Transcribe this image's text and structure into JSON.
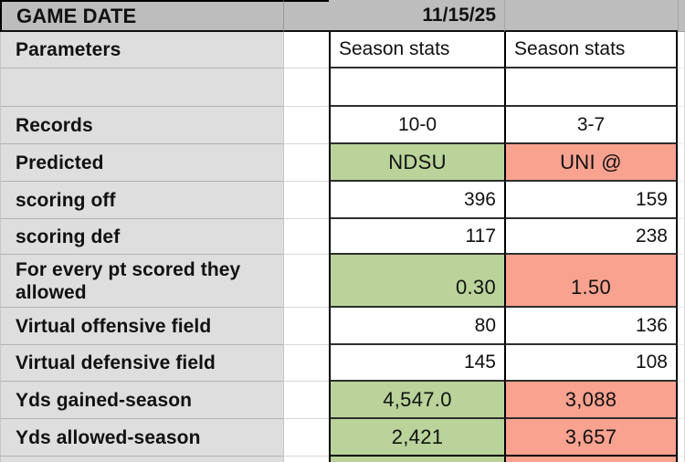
{
  "table": {
    "header": {
      "title": "GAME DATE",
      "date": "11/15/25"
    },
    "teams": {
      "favored": "NDSU",
      "underdog": "UNI @"
    },
    "rows": [
      {
        "label": "Parameters",
        "ndsu": "Season stats",
        "uni": "Season stats"
      },
      {
        "label": "",
        "ndsu": "",
        "uni": ""
      },
      {
        "label": "Records",
        "ndsu": "10-0",
        "uni": "3-7"
      },
      {
        "label": "Predicted",
        "ndsu": "NDSU",
        "uni": "UNI @"
      },
      {
        "label": "scoring off",
        "ndsu": "396",
        "uni": "159"
      },
      {
        "label": "scoring def",
        "ndsu": "117",
        "uni": "238"
      },
      {
        "label": "For every pt scored they allowed",
        "ndsu": "0.30",
        "uni": "1.50"
      },
      {
        "label": "Virtual offensive field",
        "ndsu": "80",
        "uni": "136"
      },
      {
        "label": "Virtual defensive field",
        "ndsu": "145",
        "uni": "108"
      },
      {
        "label": "Yds gained-season",
        "ndsu": "4,547.0",
        "uni": "3,088"
      },
      {
        "label": "Yds allowed-season",
        "ndsu": "2,421",
        "uni": "3,657"
      }
    ],
    "colors": {
      "favored_fill": "#b9d39a",
      "underdog_fill": "#f9a290",
      "header_bg": "#bdbdbd",
      "label_bg": "#dedede"
    }
  }
}
